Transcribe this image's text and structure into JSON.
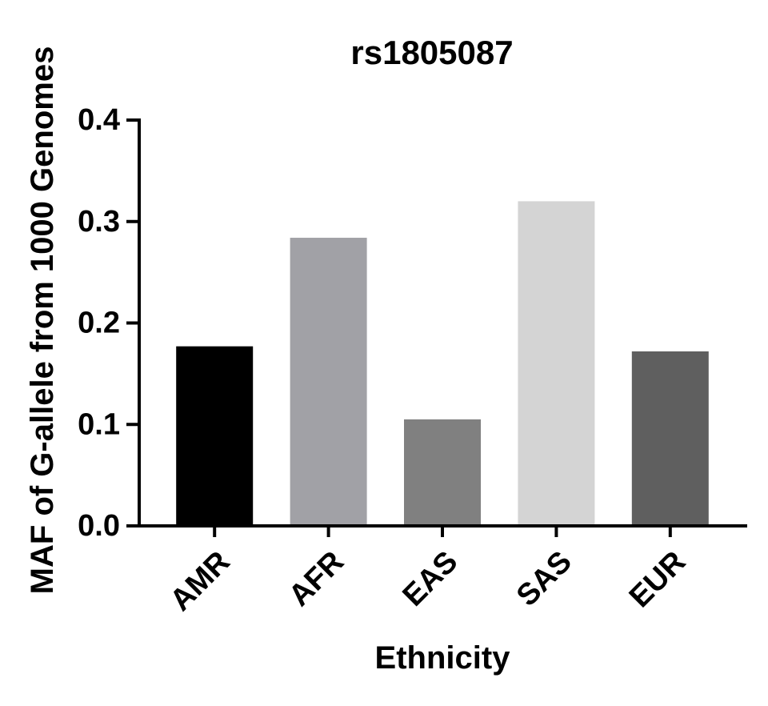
{
  "chart_data": {
    "type": "bar",
    "title": "rs1805087",
    "xlabel": "Ethnicity",
    "ylabel": "MAF of G-allele from 1000 Genomes",
    "categories": [
      "AMR",
      "AFR",
      "EAS",
      "SAS",
      "EUR"
    ],
    "values": [
      0.177,
      0.284,
      0.105,
      0.32,
      0.172
    ],
    "colors": [
      "#000000",
      "#a1a1a6",
      "#808080",
      "#d4d4d4",
      "#5f5f5f"
    ],
    "ylim": [
      0,
      0.4
    ],
    "yticks": [
      "0.0",
      "0.1",
      "0.2",
      "0.3",
      "0.4"
    ],
    "grid": false,
    "legend": "none"
  }
}
